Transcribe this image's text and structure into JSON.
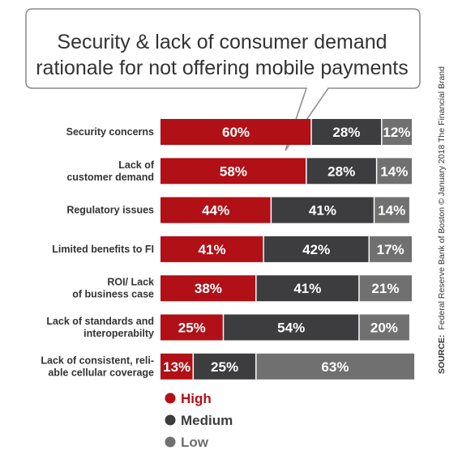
{
  "chart_data": {
    "type": "bar",
    "orientation": "horizontal",
    "stacked": true,
    "title": "Security & lack of consumer demand rationale for not offering mobile payments",
    "title_lines": [
      "Security & lack of consumer demand",
      "rationale for not offering mobile payments"
    ],
    "categories": [
      [
        "Security concerns"
      ],
      [
        "Lack of",
        "customer demand"
      ],
      [
        "Regulatory issues"
      ],
      [
        "Limited benefits to FI"
      ],
      [
        "ROI/ Lack",
        "of business case"
      ],
      [
        "Lack of standards and",
        "interoperabilty"
      ],
      [
        "Lack of consistent, reli-",
        "able cellular coverage"
      ]
    ],
    "series": [
      {
        "name": "High",
        "color": "#b01016",
        "values": [
          60,
          58,
          44,
          41,
          38,
          25,
          13
        ]
      },
      {
        "name": "Medium",
        "color": "#3d3d3f",
        "values": [
          28,
          28,
          41,
          42,
          41,
          54,
          25
        ]
      },
      {
        "name": "Low",
        "color": "#707070",
        "values": [
          12,
          14,
          14,
          17,
          21,
          20,
          63
        ]
      }
    ],
    "value_suffix": "%",
    "xlim": [
      0,
      100
    ],
    "legend_position": "bottom-left",
    "grid": false
  },
  "source": {
    "label": "SOURCE:",
    "text": "Federal Reserve Bank of Boston © January 2018 The Financial Brand"
  }
}
